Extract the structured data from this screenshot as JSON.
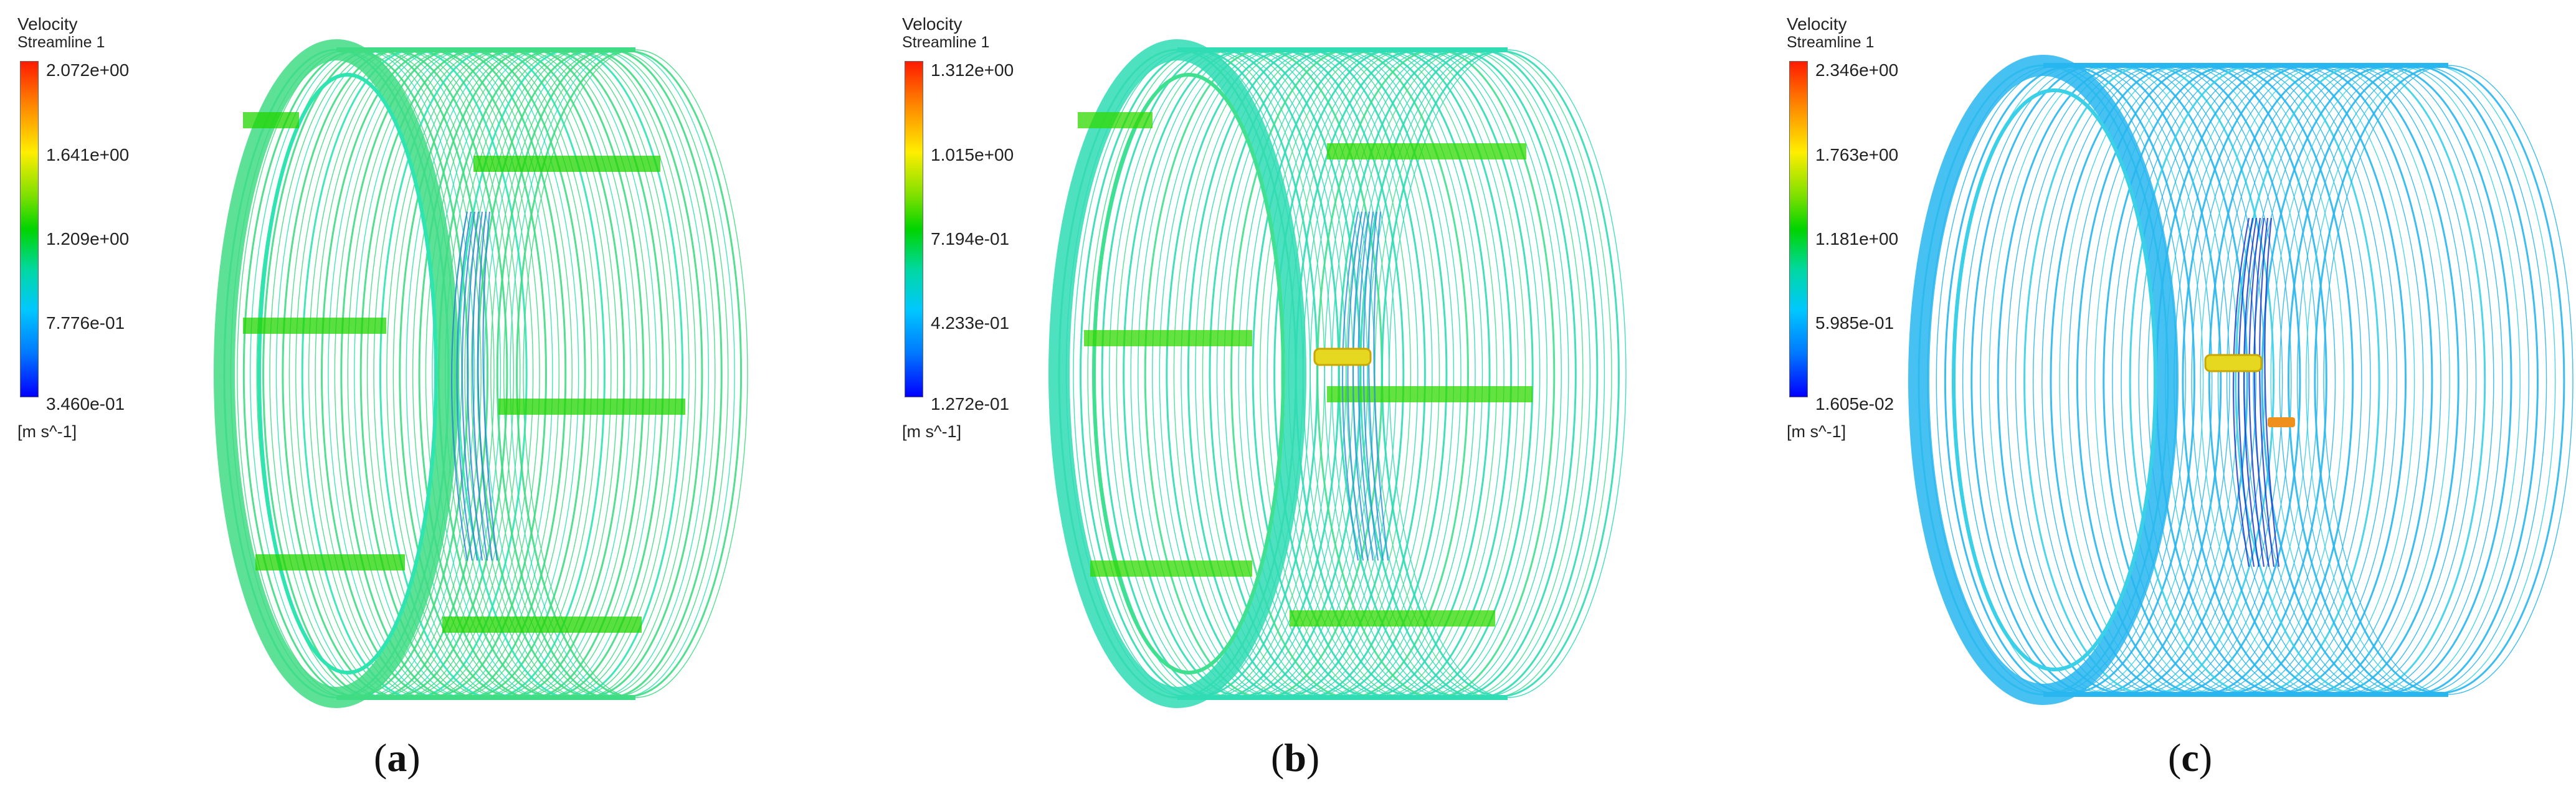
{
  "panels": [
    {
      "id": "a",
      "label": "a",
      "legend": {
        "title": "Velocity",
        "subtitle": "Streamline 1",
        "ticks": [
          "2.072e+00",
          "1.641e+00",
          "1.209e+00",
          "7.776e-01",
          "3.460e-01"
        ],
        "unit": "[m s^-1]"
      },
      "colors": {
        "primary": "#3fdc84",
        "secondary": "#2ee4b0",
        "band": "#22d400",
        "dark": "#2a7fd8"
      }
    },
    {
      "id": "b",
      "label": "b",
      "legend": {
        "title": "Velocity",
        "subtitle": "Streamline 1",
        "ticks": [
          "1.312e+00",
          "1.015e+00",
          "7.194e-01",
          "4.233e-01",
          "1.272e-01"
        ],
        "unit": "[m s^-1]"
      },
      "colors": {
        "primary": "#2fdcb4",
        "secondary": "#3fe090",
        "band": "#30d800",
        "dark": "#2a8fe0"
      }
    },
    {
      "id": "c",
      "label": "c",
      "legend": {
        "title": "Velocity",
        "subtitle": "Streamline 1",
        "ticks": [
          "2.346e+00",
          "1.763e+00",
          "1.181e+00",
          "5.985e-01",
          "1.605e-02"
        ],
        "unit": "[m s^-1]"
      },
      "colors": {
        "primary": "#27b6f0",
        "secondary": "#39d0e8",
        "band": "#22c0f0",
        "dark": "#1030c8"
      }
    }
  ]
}
